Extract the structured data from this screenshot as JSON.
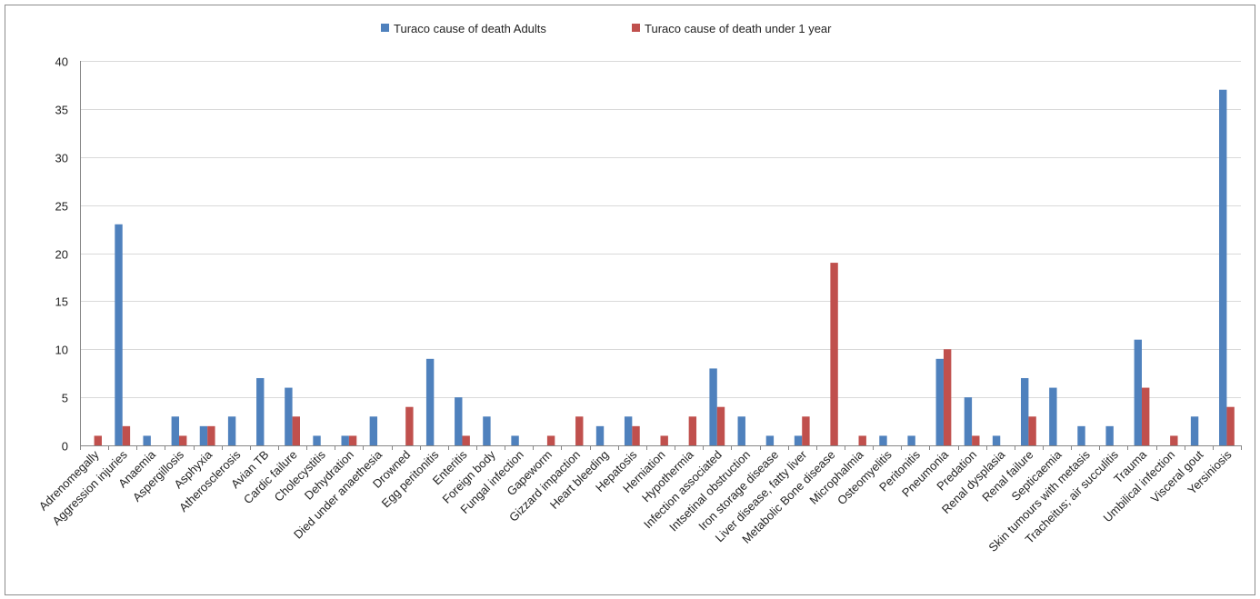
{
  "chart_data": {
    "type": "bar",
    "title": "",
    "xlabel": "",
    "ylabel": "",
    "ylim": [
      0,
      40
    ],
    "yticks": [
      0,
      5,
      10,
      15,
      20,
      25,
      30,
      35,
      40
    ],
    "grid": "horizontal",
    "legend_position": "top",
    "categories": [
      "Adrenomegally",
      "Aggression injuries",
      "Anaemia",
      "Aspergillosis",
      "Asphyxia",
      "Atherosclerosis",
      "Avian TB",
      "Cardic failure",
      "Cholecystitis",
      "Dehydration",
      "Died under anaethesia",
      "Drowned",
      "Egg peritonitis",
      "Enteritis",
      "Foreign body",
      "Fungal infection",
      "Gapeworm",
      "Gizzard impaction",
      "Heart bleeding",
      "Hepatosis",
      "Herniation",
      "Hypothermia",
      "Infection associated",
      "Intsetinal obstruction",
      "Iron storage disease",
      "Liver disease, fatty liver",
      "Metabolic Bone disease",
      "Microphalmia",
      "Osteomyelitis",
      "Peritonitis",
      "Pneumonia",
      "Predation",
      "Renal dysplasia",
      "Renal failure",
      "Septicaemia",
      "Skin tumours with metasis",
      "Tracheitus; air succulitis",
      "Trauma",
      "Umbilical infection",
      "Visceral gout",
      "Yersiniosis"
    ],
    "series": [
      {
        "name": "Turaco cause of death Adults",
        "color": "#4f81bd",
        "values": [
          0,
          23,
          1,
          3,
          2,
          3,
          7,
          6,
          1,
          1,
          3,
          0,
          9,
          5,
          3,
          1,
          0,
          0,
          2,
          3,
          0,
          0,
          8,
          3,
          1,
          1,
          0,
          0,
          1,
          1,
          9,
          5,
          1,
          7,
          6,
          2,
          2,
          11,
          0,
          3,
          37
        ]
      },
      {
        "name": "Turaco cause of death under 1 year",
        "color": "#c0504d",
        "values": [
          1,
          2,
          0,
          1,
          2,
          0,
          0,
          3,
          0,
          1,
          0,
          4,
          0,
          1,
          0,
          0,
          1,
          3,
          0,
          2,
          1,
          3,
          4,
          0,
          0,
          3,
          19,
          1,
          0,
          0,
          10,
          1,
          0,
          3,
          0,
          0,
          0,
          6,
          1,
          0,
          4
        ]
      }
    ]
  }
}
